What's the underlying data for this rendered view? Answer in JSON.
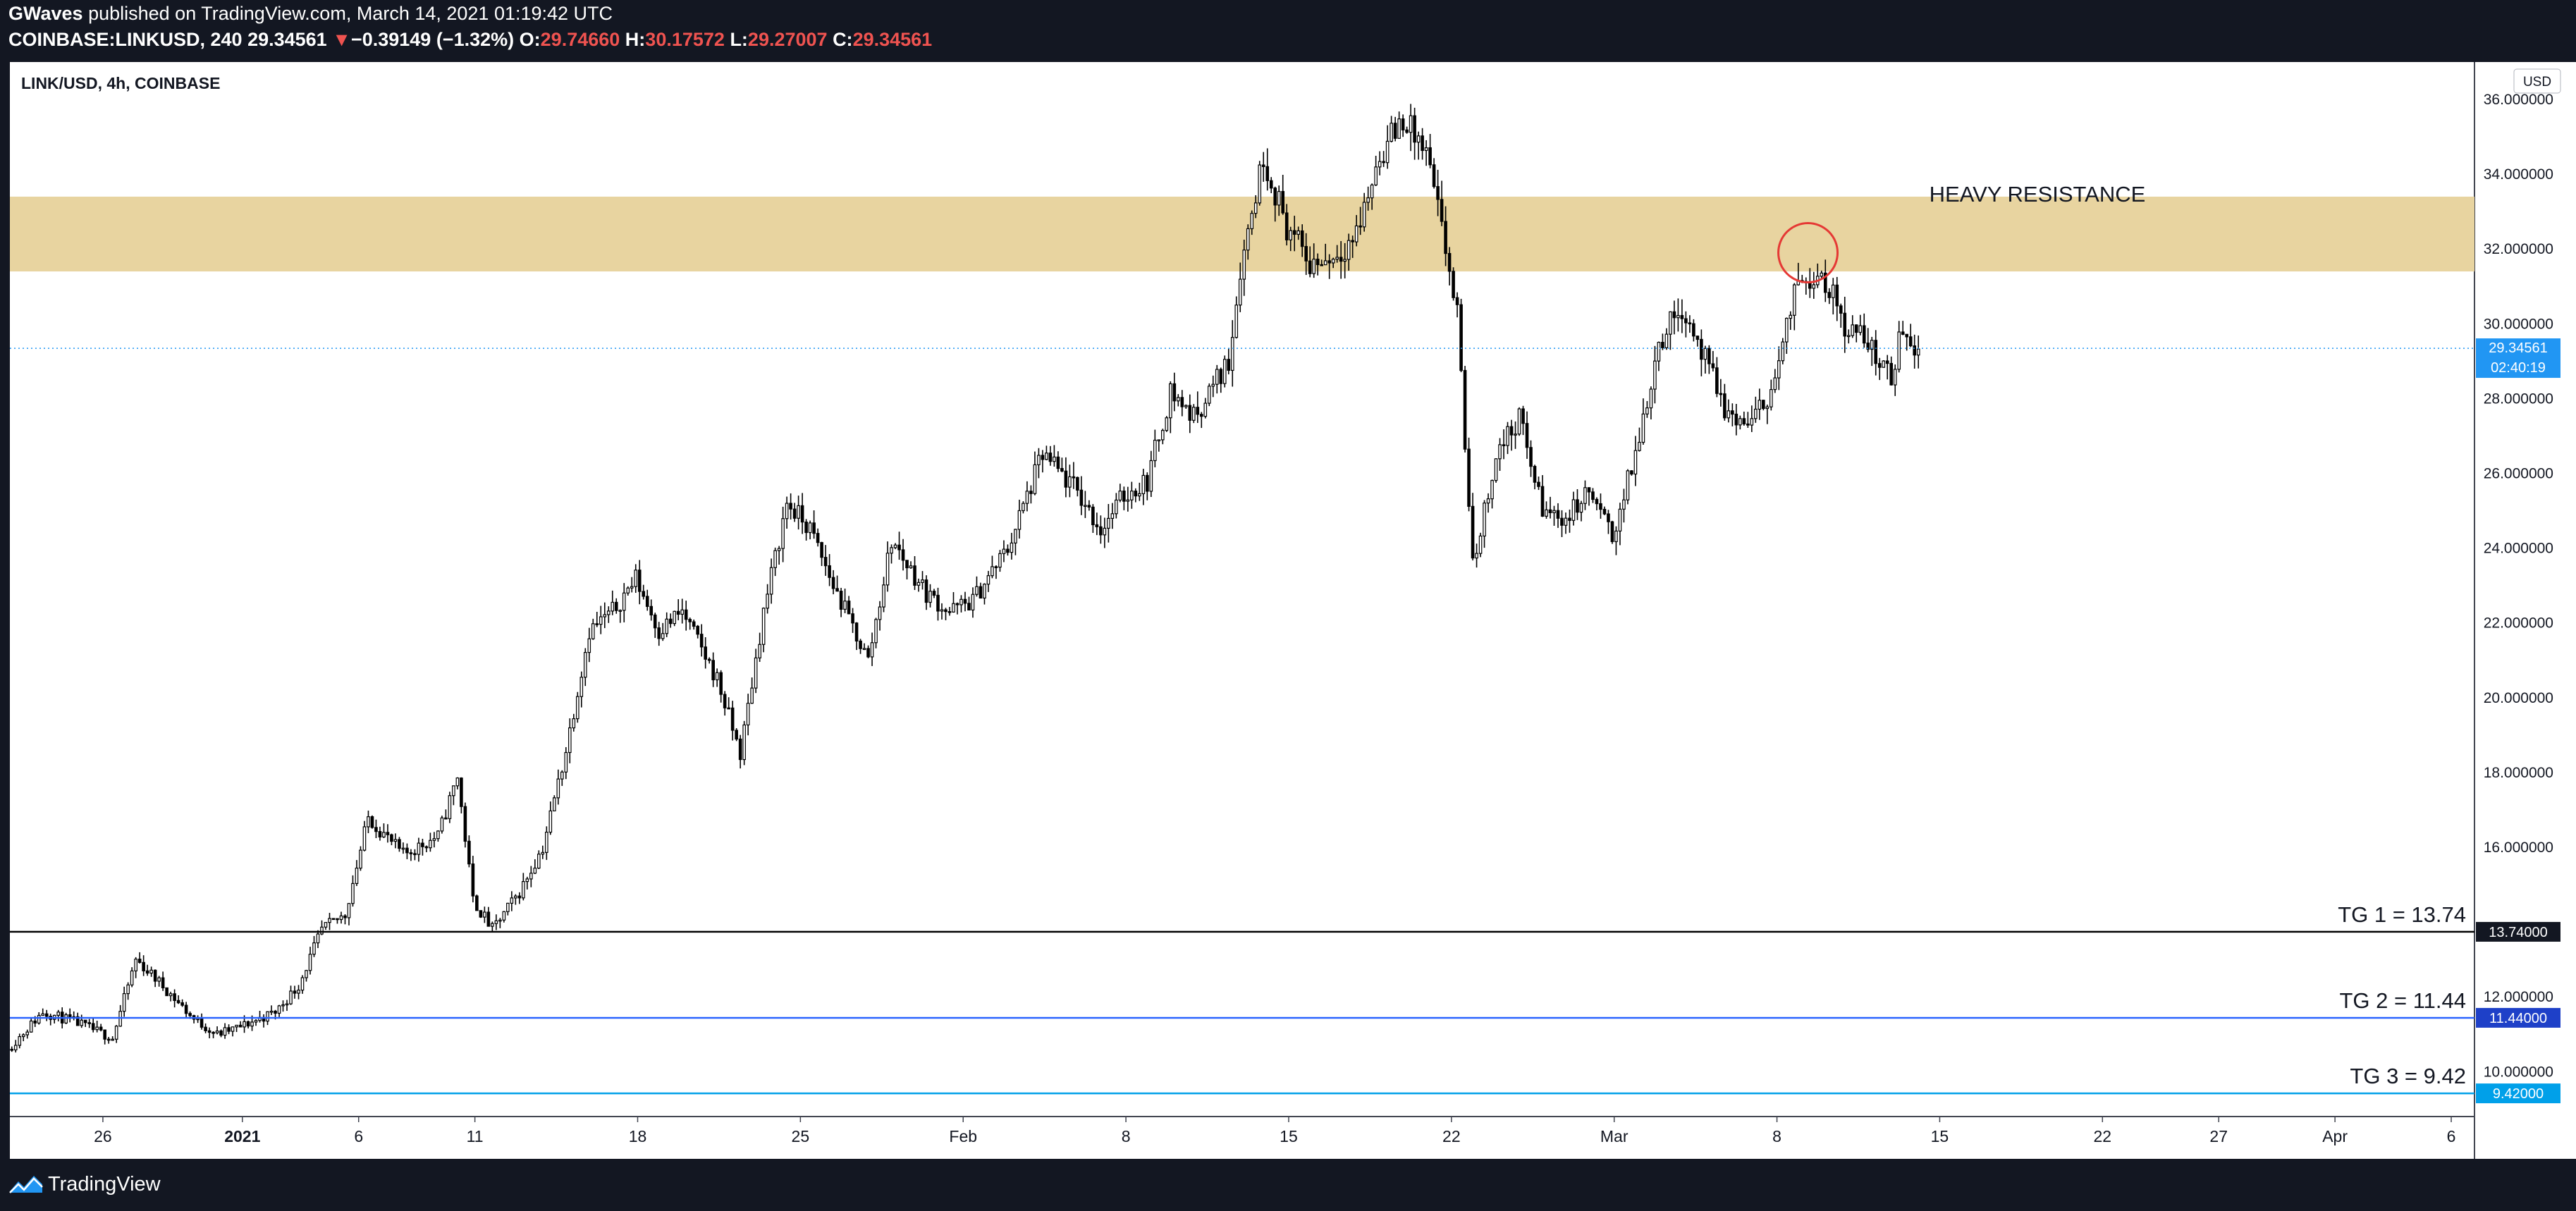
{
  "header": {
    "publisher": "GWaves",
    "published_text": "published on TradingView.com, March 14, 2021 01:19:42 UTC",
    "symbol": "COINBASE:LINKUSD, 240",
    "last": "29.34561",
    "change_arrow": "▼",
    "change": "−0.39149 (−1.32%)",
    "o_label": "O:",
    "o_value": "29.74660",
    "h_label": "H:",
    "h_value": "30.17572",
    "l_label": "L:",
    "l_value": "29.27007",
    "c_label": "C:",
    "c_value": "29.34561"
  },
  "footer": {
    "brand": "TradingView",
    "logo_icon": "tradingview-logo-icon"
  },
  "colors": {
    "background": "#131722",
    "pane": "#ffffff",
    "candle": "#000000",
    "zone": "#e8d4a0",
    "tg1": "#000000",
    "tg2": "#2962ff",
    "tg3": "#00a0e9",
    "current_price": "#2196f3",
    "circle": "#e53935",
    "down": "#ef5350"
  },
  "chart_data": {
    "type": "candlestick",
    "title": "LINK/USD, 4h, COINBASE",
    "currency_label": "USD",
    "y_axis": {
      "range": [
        8.8,
        37.0
      ],
      "ticks": [
        10,
        12,
        16,
        18,
        20,
        22,
        24,
        26,
        28,
        30,
        32,
        34,
        36
      ],
      "tick_labels": [
        "10.000000",
        "12.000000",
        "16.000000",
        "18.000000",
        "20.000000",
        "22.000000",
        "24.000000",
        "26.000000",
        "28.000000",
        "30.000000",
        "32.000000",
        "34.000000",
        "36.000000"
      ]
    },
    "x_axis": {
      "range": [
        "2020-12-22",
        "2021-04-07"
      ],
      "ticks": [
        {
          "date": "2020-12-26",
          "label": "26"
        },
        {
          "date": "2021-01-01",
          "label": "2021"
        },
        {
          "date": "2021-01-06",
          "label": "6"
        },
        {
          "date": "2021-01-11",
          "label": "11"
        },
        {
          "date": "2021-01-18",
          "label": "18"
        },
        {
          "date": "2021-01-25",
          "label": "25"
        },
        {
          "date": "2021-02-01",
          "label": "Feb"
        },
        {
          "date": "2021-02-08",
          "label": "8"
        },
        {
          "date": "2021-02-15",
          "label": "15"
        },
        {
          "date": "2021-02-22",
          "label": "22"
        },
        {
          "date": "2021-03-01",
          "label": "Mar"
        },
        {
          "date": "2021-03-08",
          "label": "8"
        },
        {
          "date": "2021-03-15",
          "label": "15"
        },
        {
          "date": "2021-03-22",
          "label": "22"
        },
        {
          "date": "2021-03-27",
          "label": "27"
        },
        {
          "date": "2021-04-01",
          "label": "Apr"
        },
        {
          "date": "2021-04-06",
          "label": "6"
        }
      ]
    },
    "price_path": [
      [
        "2020-12-22T00:00",
        10.6
      ],
      [
        "2020-12-23T12:00",
        11.6
      ],
      [
        "2020-12-25T00:00",
        11.3
      ],
      [
        "2020-12-26T12:00",
        10.9
      ],
      [
        "2020-12-27T12:00",
        13.0
      ],
      [
        "2020-12-28T12:00",
        12.4
      ],
      [
        "2020-12-30T00:00",
        11.4
      ],
      [
        "2020-12-31T00:00",
        11.0
      ],
      [
        "2021-01-01T00:00",
        11.2
      ],
      [
        "2021-01-02T12:00",
        11.6
      ],
      [
        "2021-01-03T12:00",
        12.3
      ],
      [
        "2021-01-04T12:00",
        13.8
      ],
      [
        "2021-01-05T12:00",
        14.2
      ],
      [
        "2021-01-06T12:00",
        16.8
      ],
      [
        "2021-01-08T00:00",
        15.8
      ],
      [
        "2021-01-09T12:00",
        16.3
      ],
      [
        "2021-01-10T08:00",
        17.9
      ],
      [
        "2021-01-11T00:00",
        14.6
      ],
      [
        "2021-01-11T20:00",
        13.8
      ],
      [
        "2021-01-13T00:00",
        14.8
      ],
      [
        "2021-01-14T00:00",
        16.0
      ],
      [
        "2021-01-15T00:00",
        18.6
      ],
      [
        "2021-01-16T00:00",
        21.8
      ],
      [
        "2021-01-17T00:00",
        22.3
      ],
      [
        "2021-01-18T00:00",
        23.2
      ],
      [
        "2021-01-19T00:00",
        21.8
      ],
      [
        "2021-01-20T00:00",
        22.3
      ],
      [
        "2021-01-21T12:00",
        20.5
      ],
      [
        "2021-01-22T12:00",
        18.5
      ],
      [
        "2021-01-23T12:00",
        22.3
      ],
      [
        "2021-01-24T12:00",
        25.2
      ],
      [
        "2021-01-25T12:00",
        24.5
      ],
      [
        "2021-01-26T12:00",
        23.0
      ],
      [
        "2021-01-28T00:00",
        21.0
      ],
      [
        "2021-01-29T00:00",
        24.2
      ],
      [
        "2021-01-30T12:00",
        22.8
      ],
      [
        "2021-01-31T12:00",
        22.3
      ],
      [
        "2021-02-01T12:00",
        22.6
      ],
      [
        "2021-02-03T00:00",
        24.0
      ],
      [
        "2021-02-04T12:00",
        26.5
      ],
      [
        "2021-02-06T00:00",
        25.5
      ],
      [
        "2021-02-07T00:00",
        24.5
      ],
      [
        "2021-02-08T00:00",
        25.4
      ],
      [
        "2021-02-09T00:00",
        25.8
      ],
      [
        "2021-02-10T00:00",
        28.2
      ],
      [
        "2021-02-11T00:00",
        27.5
      ],
      [
        "2021-02-12T12:00",
        29.0
      ],
      [
        "2021-02-13T00:00",
        31.5
      ],
      [
        "2021-02-14T00:00",
        34.5
      ],
      [
        "2021-02-15T00:00",
        32.6
      ],
      [
        "2021-02-16T00:00",
        31.6
      ],
      [
        "2021-02-17T00:00",
        31.8
      ],
      [
        "2021-02-18T00:00",
        32.4
      ],
      [
        "2021-02-19T00:00",
        34.5
      ],
      [
        "2021-02-20T00:00",
        35.5
      ],
      [
        "2021-02-21T00:00",
        34.5
      ],
      [
        "2021-02-21T20:00",
        32.0
      ],
      [
        "2021-02-22T08:00",
        30.2
      ],
      [
        "2021-02-23T00:00",
        23.5
      ],
      [
        "2021-02-24T00:00",
        26.5
      ],
      [
        "2021-02-25T00:00",
        27.5
      ],
      [
        "2021-02-26T00:00",
        25.0
      ],
      [
        "2021-02-27T00:00",
        24.8
      ],
      [
        "2021-02-28T00:00",
        25.5
      ],
      [
        "2021-03-01T00:00",
        24.3
      ],
      [
        "2021-03-02T00:00",
        26.5
      ],
      [
        "2021-03-03T00:00",
        29.5
      ],
      [
        "2021-03-04T00:00",
        30.5
      ],
      [
        "2021-03-05T00:00",
        29.0
      ],
      [
        "2021-03-06T00:00",
        27.5
      ],
      [
        "2021-03-07T00:00",
        27.3
      ],
      [
        "2021-03-08T00:00",
        28.5
      ],
      [
        "2021-03-09T00:00",
        31.2
      ],
      [
        "2021-03-10T00:00",
        31.4
      ],
      [
        "2021-03-11T00:00",
        30.0
      ],
      [
        "2021-03-12T00:00",
        29.5
      ],
      [
        "2021-03-13T00:00",
        28.5
      ],
      [
        "2021-03-13T12:00",
        30.0
      ],
      [
        "2021-03-14T00:00",
        29.35
      ]
    ],
    "series": [
      {
        "type": "candlestick",
        "timeframe": "4h",
        "last_close": 29.34561
      }
    ],
    "zones": [
      {
        "label": "HEAVY RESISTANCE",
        "from": 31.4,
        "to": 33.4
      }
    ],
    "horizontal_lines": [
      {
        "label": "TG 1 = 13.74",
        "value": 13.74,
        "axis_label": "13.74000"
      },
      {
        "label": "TG 2 = 11.44",
        "value": 11.44,
        "axis_label": "11.44000"
      },
      {
        "label": "TG 3 = 9.42",
        "value": 9.42,
        "axis_label": "9.42000"
      }
    ],
    "current_price": {
      "value": 29.34561,
      "label": "29.34561",
      "countdown": "02:40:19"
    },
    "annotations": [
      {
        "type": "circle",
        "date": "2021-03-09T08:00",
        "value": 31.9
      }
    ],
    "grid": false
  }
}
